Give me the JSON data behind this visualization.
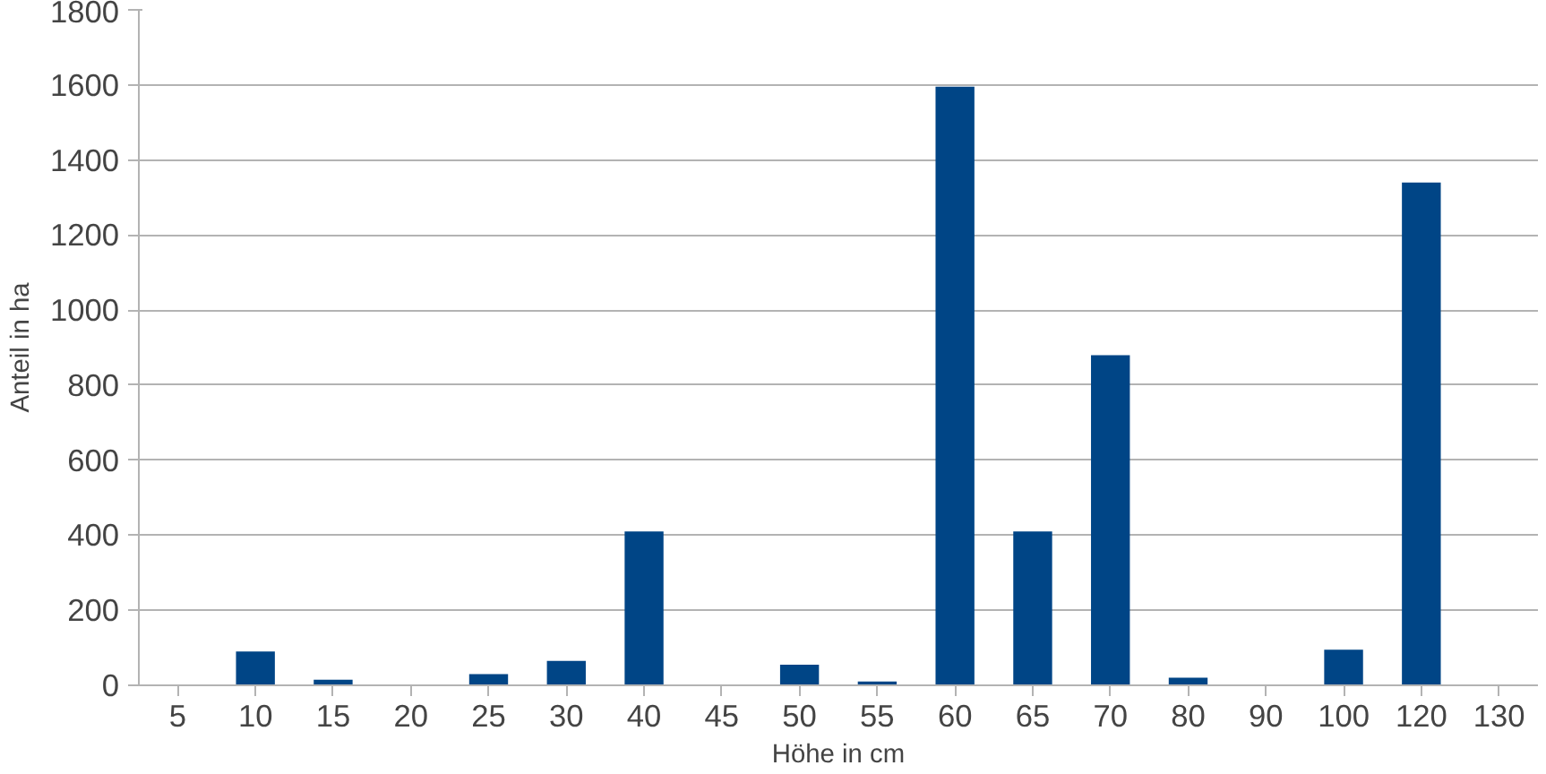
{
  "chart_data": {
    "type": "bar",
    "xlabel": "Höhe in cm",
    "ylabel": "Anteil in ha",
    "categories": [
      "5",
      "10",
      "15",
      "20",
      "25",
      "30",
      "40",
      "45",
      "50",
      "55",
      "60",
      "65",
      "70",
      "80",
      "90",
      "100",
      "120",
      "130"
    ],
    "values": [
      0,
      90,
      15,
      0,
      30,
      65,
      410,
      0,
      55,
      10,
      1595,
      410,
      880,
      20,
      0,
      95,
      1340,
      0
    ],
    "color": "#004586",
    "ylim": [
      0,
      1800
    ],
    "yticks": [
      0,
      200,
      400,
      600,
      800,
      1000,
      1200,
      1400,
      1600,
      1800
    ],
    "grid": "y"
  }
}
